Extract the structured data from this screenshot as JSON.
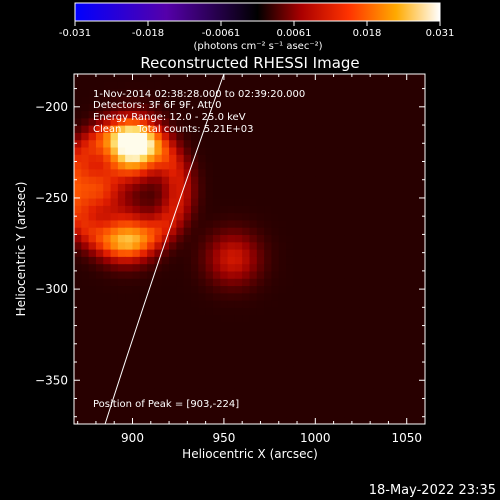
{
  "chart_data": {
    "type": "heatmap",
    "title": "Reconstructed RHESSI Image",
    "xlabel": "Heliocentric X (arcsec)",
    "ylabel": "Heliocentric Y (arcsec)",
    "xlim": [
      868,
      1060
    ],
    "ylim": [
      -374,
      -182
    ],
    "xticks": [
      900,
      950,
      1000,
      1050
    ],
    "yticks": [
      -200,
      -250,
      -300,
      -350
    ],
    "colorbar": {
      "label": "(photons cm⁻² s⁻¹ asec⁻²)",
      "ticks": [
        "-0.031",
        "-0.018",
        "-0.0061",
        "0.0061",
        "0.018",
        "0.031"
      ],
      "min": -0.031,
      "max": 0.031,
      "colormap": "IDL color table 3 / flame: blue → purple → black → red → orange → yellow → white"
    },
    "annotations": [
      "1-Nov-2014 02:38:28.000 to 02:39:20.000",
      "Detectors: 3F 6F 9F, Att 0",
      "Energy Range: 12.0 - 25.0 keV",
      "Clean     Total counts: 5.21E+03"
    ],
    "peak_label": "Position of Peak = [903,-224]",
    "peak_position": [
      903,
      -224
    ],
    "limb_curve": {
      "x": [
        885,
        915,
        950
      ],
      "y": [
        -374,
        -280,
        -182
      ]
    },
    "sources": [
      {
        "x": 900,
        "y": -225,
        "level": 1.0
      },
      {
        "x": 900,
        "y": -220,
        "level": 0.95
      },
      {
        "x": 897,
        "y": -270,
        "level": 0.9
      },
      {
        "x": 955,
        "y": -283,
        "level": 0.62
      },
      {
        "x": 880,
        "y": -245,
        "level": 0.85
      }
    ]
  },
  "timestamp": "18-May-2022 23:35"
}
